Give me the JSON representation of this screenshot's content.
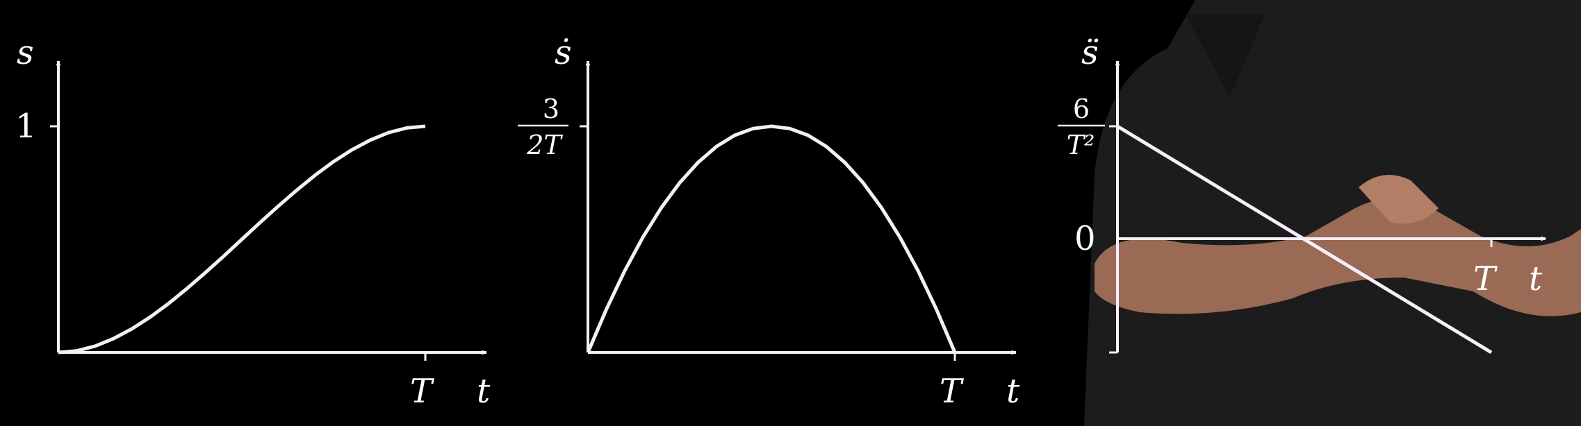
{
  "colors": {
    "background": "#000000",
    "ink": "#f7eefa",
    "shirt": "#232323",
    "skin": "#a8735c"
  },
  "chart_data": [
    {
      "type": "line",
      "title": "",
      "ylabel": "s",
      "xlabel": "t",
      "x_tick_labels": [
        "T"
      ],
      "y_tick_labels": [
        "1"
      ],
      "xlim": [
        0,
        1.15
      ],
      "ylim": [
        0,
        1.15
      ],
      "series": [
        {
          "x": [
            0,
            0.05,
            0.1,
            0.15,
            0.2,
            0.25,
            0.3,
            0.35,
            0.4,
            0.45,
            0.5,
            0.55,
            0.6,
            0.65,
            0.7,
            0.75,
            0.8,
            0.85,
            0.9,
            0.95,
            1.0
          ],
          "y": [
            0,
            0.007,
            0.028,
            0.061,
            0.104,
            0.156,
            0.216,
            0.282,
            0.352,
            0.425,
            0.5,
            0.575,
            0.648,
            0.718,
            0.784,
            0.844,
            0.896,
            0.939,
            0.972,
            0.993,
            1.0
          ]
        }
      ]
    },
    {
      "type": "line",
      "title": "",
      "ylabel": "ṡ",
      "xlabel": "t",
      "x_tick_labels": [
        "T"
      ],
      "y_tick_label": {
        "numerator": "3",
        "denominator": "2T"
      },
      "xlim": [
        0,
        1.15
      ],
      "ylim": [
        0,
        1.6
      ],
      "series": [
        {
          "x": [
            0,
            0.05,
            0.1,
            0.15,
            0.2,
            0.25,
            0.3,
            0.35,
            0.4,
            0.45,
            0.5,
            0.55,
            0.6,
            0.65,
            0.7,
            0.75,
            0.8,
            0.85,
            0.9,
            0.95,
            1.0
          ],
          "y": [
            0,
            0.285,
            0.54,
            0.765,
            0.96,
            1.125,
            1.26,
            1.365,
            1.44,
            1.485,
            1.5,
            1.485,
            1.44,
            1.365,
            1.26,
            1.125,
            0.96,
            0.765,
            0.54,
            0.285,
            0
          ]
        }
      ]
    },
    {
      "type": "line",
      "title": "",
      "ylabel": "s̈",
      "xlabel": "t",
      "x_tick_labels": [
        "T"
      ],
      "y_tick_labels": [
        "0"
      ],
      "y_tick_label": {
        "numerator": "6",
        "denominator": "T²"
      },
      "xlim": [
        0,
        1.15
      ],
      "ylim": [
        -6,
        6
      ],
      "series": [
        {
          "x": [
            0,
            1.0
          ],
          "y": [
            6,
            -6
          ]
        }
      ]
    }
  ]
}
